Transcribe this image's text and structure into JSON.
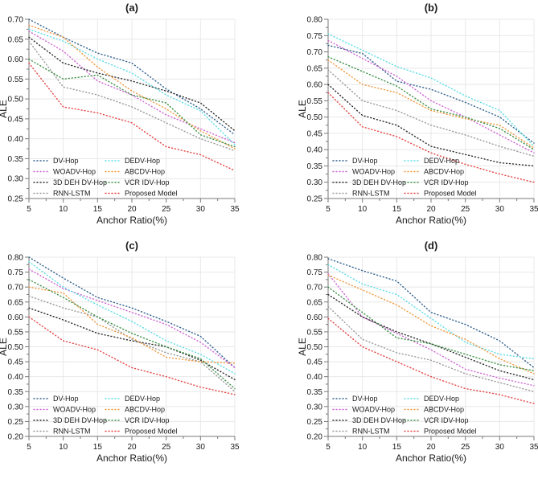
{
  "figure": {
    "background": "#ffffff",
    "grid_color": "#e8e8e8",
    "axis_color": "#7a7a7a",
    "text_color": "#1a1a1a"
  },
  "chart_data": [
    {
      "id": "a",
      "type": "line",
      "label": "(a)",
      "xlabel": "Anchor Ratio(%)",
      "ylabel": "ALE",
      "xlim": [
        5,
        35
      ],
      "ylim": [
        0.25,
        0.7
      ],
      "xticks": [
        5,
        10,
        15,
        20,
        25,
        30,
        35
      ],
      "yticks": [
        "0.25",
        "0.30",
        "0.35",
        "0.40",
        "0.45",
        "0.50",
        "0.55",
        "0.60",
        "0.65",
        "0.70"
      ],
      "x": [
        5,
        10,
        15,
        20,
        25,
        30,
        35
      ],
      "series": [
        {
          "name": "DV-Hop",
          "color": "#33628f",
          "values": [
            0.7,
            0.655,
            0.615,
            0.59,
            0.525,
            0.475,
            0.41
          ]
        },
        {
          "name": "WOADV-Hop",
          "color": "#cf66d3",
          "values": [
            0.67,
            0.62,
            0.545,
            0.51,
            0.46,
            0.425,
            0.39
          ]
        },
        {
          "name": "3D DEH DV-Hop",
          "color": "#2b2b2b",
          "values": [
            0.655,
            0.59,
            0.565,
            0.545,
            0.52,
            0.49,
            0.42
          ]
        },
        {
          "name": "RNN-LSTM",
          "color": "#9a9a9a",
          "values": [
            0.645,
            0.53,
            0.51,
            0.48,
            0.44,
            0.4,
            0.37
          ]
        },
        {
          "name": "DEDV-Hop",
          "color": "#5fdde5",
          "values": [
            0.675,
            0.645,
            0.6,
            0.565,
            0.51,
            0.47,
            0.385
          ]
        },
        {
          "name": "ABCDV-Hop",
          "color": "#f09a40",
          "values": [
            0.685,
            0.655,
            0.58,
            0.52,
            0.475,
            0.42,
            0.375
          ]
        },
        {
          "name": "VCR IDV-Hop",
          "color": "#3d9147",
          "values": [
            0.6,
            0.55,
            0.56,
            0.51,
            0.49,
            0.41,
            0.38
          ]
        },
        {
          "name": "Proposed Model",
          "color": "#e54545",
          "values": [
            0.59,
            0.48,
            0.465,
            0.44,
            0.38,
            0.36,
            0.32
          ]
        }
      ]
    },
    {
      "id": "b",
      "type": "line",
      "label": "(b)",
      "xlabel": "Anchor Ratio(%)",
      "ylabel": "ALE",
      "xlim": [
        5,
        35
      ],
      "ylim": [
        0.25,
        0.8
      ],
      "xticks": [
        5,
        10,
        15,
        20,
        25,
        30,
        35
      ],
      "yticks": [
        "0.25",
        "0.30",
        "0.35",
        "0.40",
        "0.45",
        "0.50",
        "0.55",
        "0.60",
        "0.65",
        "0.70",
        "0.75",
        "0.80"
      ],
      "x": [
        5,
        10,
        15,
        20,
        25,
        30,
        35
      ],
      "series": [
        {
          "name": "DV-Hop",
          "color": "#33628f",
          "values": [
            0.72,
            0.695,
            0.61,
            0.585,
            0.545,
            0.5,
            0.42
          ]
        },
        {
          "name": "WOADV-Hop",
          "color": "#cf66d3",
          "values": [
            0.735,
            0.68,
            0.625,
            0.55,
            0.5,
            0.445,
            0.39
          ]
        },
        {
          "name": "3D DEH DV-Hop",
          "color": "#2b2b2b",
          "values": [
            0.6,
            0.505,
            0.475,
            0.41,
            0.385,
            0.36,
            0.35
          ]
        },
        {
          "name": "RNN-LSTM",
          "color": "#9a9a9a",
          "values": [
            0.645,
            0.55,
            0.52,
            0.475,
            0.445,
            0.41,
            0.38
          ]
        },
        {
          "name": "DEDV-Hop",
          "color": "#5fdde5",
          "values": [
            0.755,
            0.705,
            0.655,
            0.62,
            0.565,
            0.52,
            0.41
          ]
        },
        {
          "name": "ABCDV-Hop",
          "color": "#f09a40",
          "values": [
            0.675,
            0.6,
            0.575,
            0.52,
            0.495,
            0.475,
            0.405
          ]
        },
        {
          "name": "VCR IDV-Hop",
          "color": "#3d9147",
          "values": [
            0.685,
            0.64,
            0.595,
            0.525,
            0.5,
            0.465,
            0.4
          ]
        },
        {
          "name": "Proposed Model",
          "color": "#e54545",
          "values": [
            0.575,
            0.47,
            0.44,
            0.39,
            0.355,
            0.325,
            0.3
          ]
        }
      ]
    },
    {
      "id": "c",
      "type": "line",
      "label": "(c)",
      "xlabel": "Anchor Ratio(%)",
      "ylabel": "ALE",
      "xlim": [
        5,
        35
      ],
      "ylim": [
        0.2,
        0.8
      ],
      "xticks": [
        5,
        10,
        15,
        20,
        25,
        30,
        35
      ],
      "yticks": [
        "0.20",
        "0.25",
        "0.30",
        "0.35",
        "0.40",
        "0.45",
        "0.50",
        "0.55",
        "0.60",
        "0.65",
        "0.70",
        "0.75",
        "0.80"
      ],
      "x": [
        5,
        10,
        15,
        20,
        25,
        30,
        35
      ],
      "series": [
        {
          "name": "DV-Hop",
          "color": "#33628f",
          "values": [
            0.8,
            0.73,
            0.665,
            0.63,
            0.585,
            0.535,
            0.43
          ]
        },
        {
          "name": "WOADV-Hop",
          "color": "#cf66d3",
          "values": [
            0.76,
            0.695,
            0.655,
            0.615,
            0.575,
            0.515,
            0.43
          ]
        },
        {
          "name": "3D DEH DV-Hop",
          "color": "#2b2b2b",
          "values": [
            0.63,
            0.59,
            0.545,
            0.52,
            0.5,
            0.455,
            0.39
          ]
        },
        {
          "name": "RNN-LSTM",
          "color": "#9a9a9a",
          "values": [
            0.67,
            0.63,
            0.6,
            0.525,
            0.48,
            0.45,
            0.35
          ]
        },
        {
          "name": "DEDV-Hop",
          "color": "#5fdde5",
          "values": [
            0.785,
            0.7,
            0.64,
            0.585,
            0.52,
            0.475,
            0.41
          ]
        },
        {
          "name": "ABCDV-Hop",
          "color": "#f09a40",
          "values": [
            0.7,
            0.68,
            0.575,
            0.53,
            0.465,
            0.45,
            0.445
          ]
        },
        {
          "name": "VCR IDV-Hop",
          "color": "#3d9147",
          "values": [
            0.725,
            0.665,
            0.6,
            0.545,
            0.5,
            0.46,
            0.36
          ]
        },
        {
          "name": "Proposed Model",
          "color": "#e54545",
          "values": [
            0.6,
            0.52,
            0.49,
            0.43,
            0.4,
            0.365,
            0.34
          ]
        }
      ]
    },
    {
      "id": "d",
      "type": "line",
      "label": "(d)",
      "xlabel": "Anchor Ratio(%)",
      "ylabel": "ALE",
      "xlim": [
        5,
        35
      ],
      "ylim": [
        0.2,
        0.8
      ],
      "xticks": [
        5,
        10,
        15,
        20,
        25,
        30,
        35
      ],
      "yticks": [
        "0.20",
        "0.25",
        "0.30",
        "0.35",
        "0.40",
        "0.45",
        "0.50",
        "0.55",
        "0.60",
        "0.65",
        "0.70",
        "0.75",
        "0.80"
      ],
      "x": [
        5,
        10,
        15,
        20,
        25,
        30,
        35
      ],
      "series": [
        {
          "name": "DV-Hop",
          "color": "#33628f",
          "values": [
            0.795,
            0.755,
            0.72,
            0.615,
            0.575,
            0.52,
            0.43
          ]
        },
        {
          "name": "WOADV-Hop",
          "color": "#cf66d3",
          "values": [
            0.745,
            0.6,
            0.545,
            0.49,
            0.425,
            0.395,
            0.37
          ]
        },
        {
          "name": "3D DEH DV-Hop",
          "color": "#2b2b2b",
          "values": [
            0.675,
            0.6,
            0.55,
            0.51,
            0.465,
            0.42,
            0.39
          ]
        },
        {
          "name": "RNN-LSTM",
          "color": "#9a9a9a",
          "values": [
            0.635,
            0.525,
            0.48,
            0.455,
            0.41,
            0.38,
            0.35
          ]
        },
        {
          "name": "DEDV-Hop",
          "color": "#5fdde5",
          "values": [
            0.775,
            0.71,
            0.675,
            0.595,
            0.515,
            0.475,
            0.46
          ]
        },
        {
          "name": "ABCDV-Hop",
          "color": "#f09a40",
          "values": [
            0.74,
            0.69,
            0.64,
            0.57,
            0.525,
            0.46,
            0.41
          ]
        },
        {
          "name": "VCR IDV-Hop",
          "color": "#3d9147",
          "values": [
            0.7,
            0.615,
            0.53,
            0.51,
            0.475,
            0.44,
            0.42
          ]
        },
        {
          "name": "Proposed Model",
          "color": "#e54545",
          "values": [
            0.595,
            0.5,
            0.45,
            0.4,
            0.36,
            0.34,
            0.31
          ]
        }
      ]
    }
  ]
}
